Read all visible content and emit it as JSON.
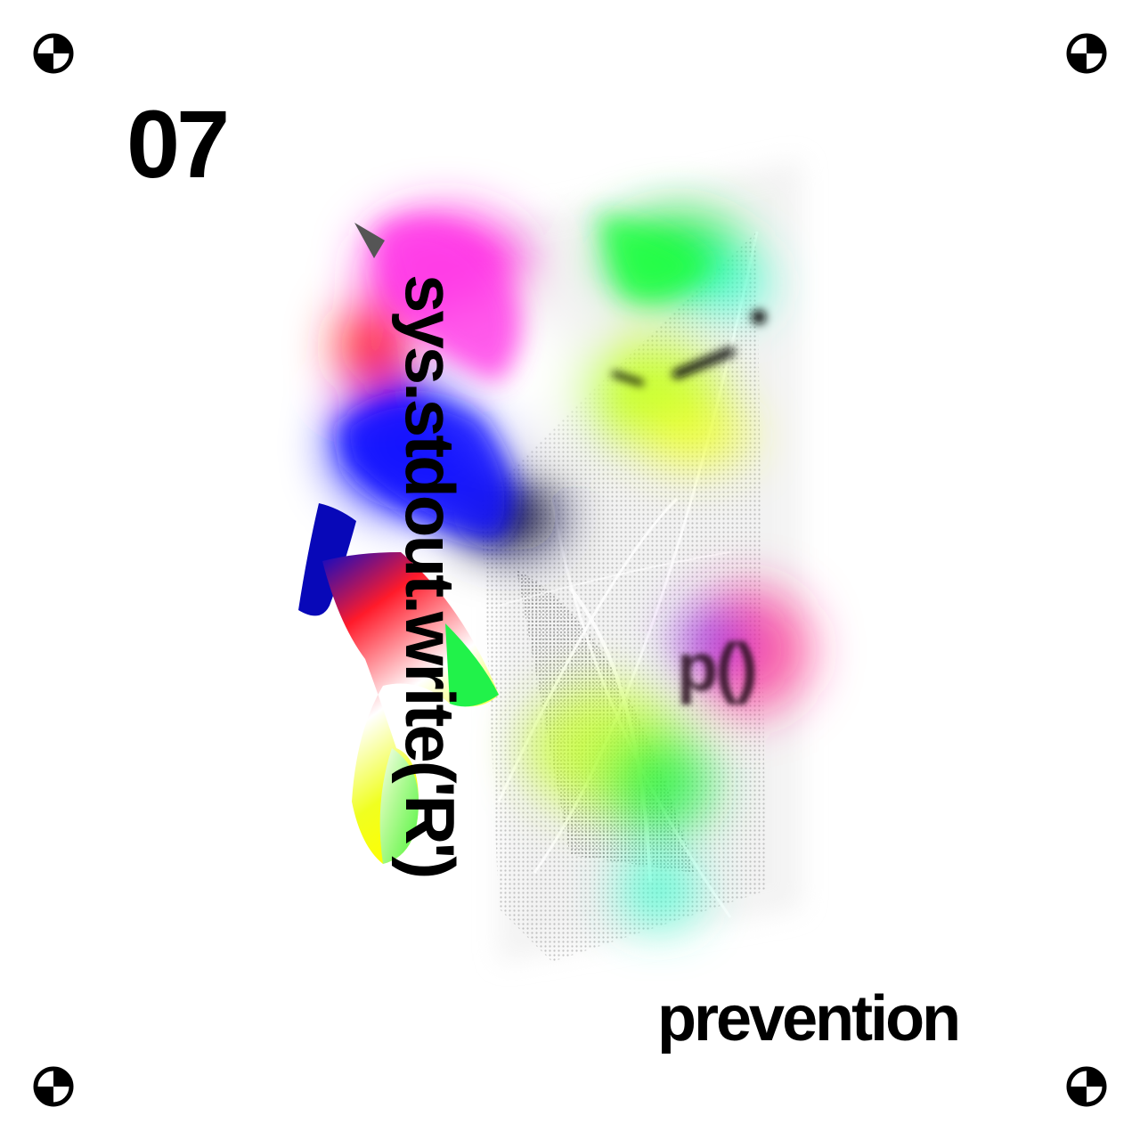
{
  "poster": {
    "number": "07",
    "code_vertical": "sys.stdout.write('R')",
    "code_blurred": "p()",
    "word": "prevention"
  },
  "icons": {
    "registration_mark": "registration-crosshair-icon"
  },
  "colors": {
    "background": "#ffffff",
    "text": "#000000",
    "magenta": "#ff2ae0",
    "blue": "#1010ff",
    "green": "#21f24a",
    "yellow": "#f0ff30",
    "red": "#ff1a2a",
    "cyan": "#40ffd0"
  }
}
